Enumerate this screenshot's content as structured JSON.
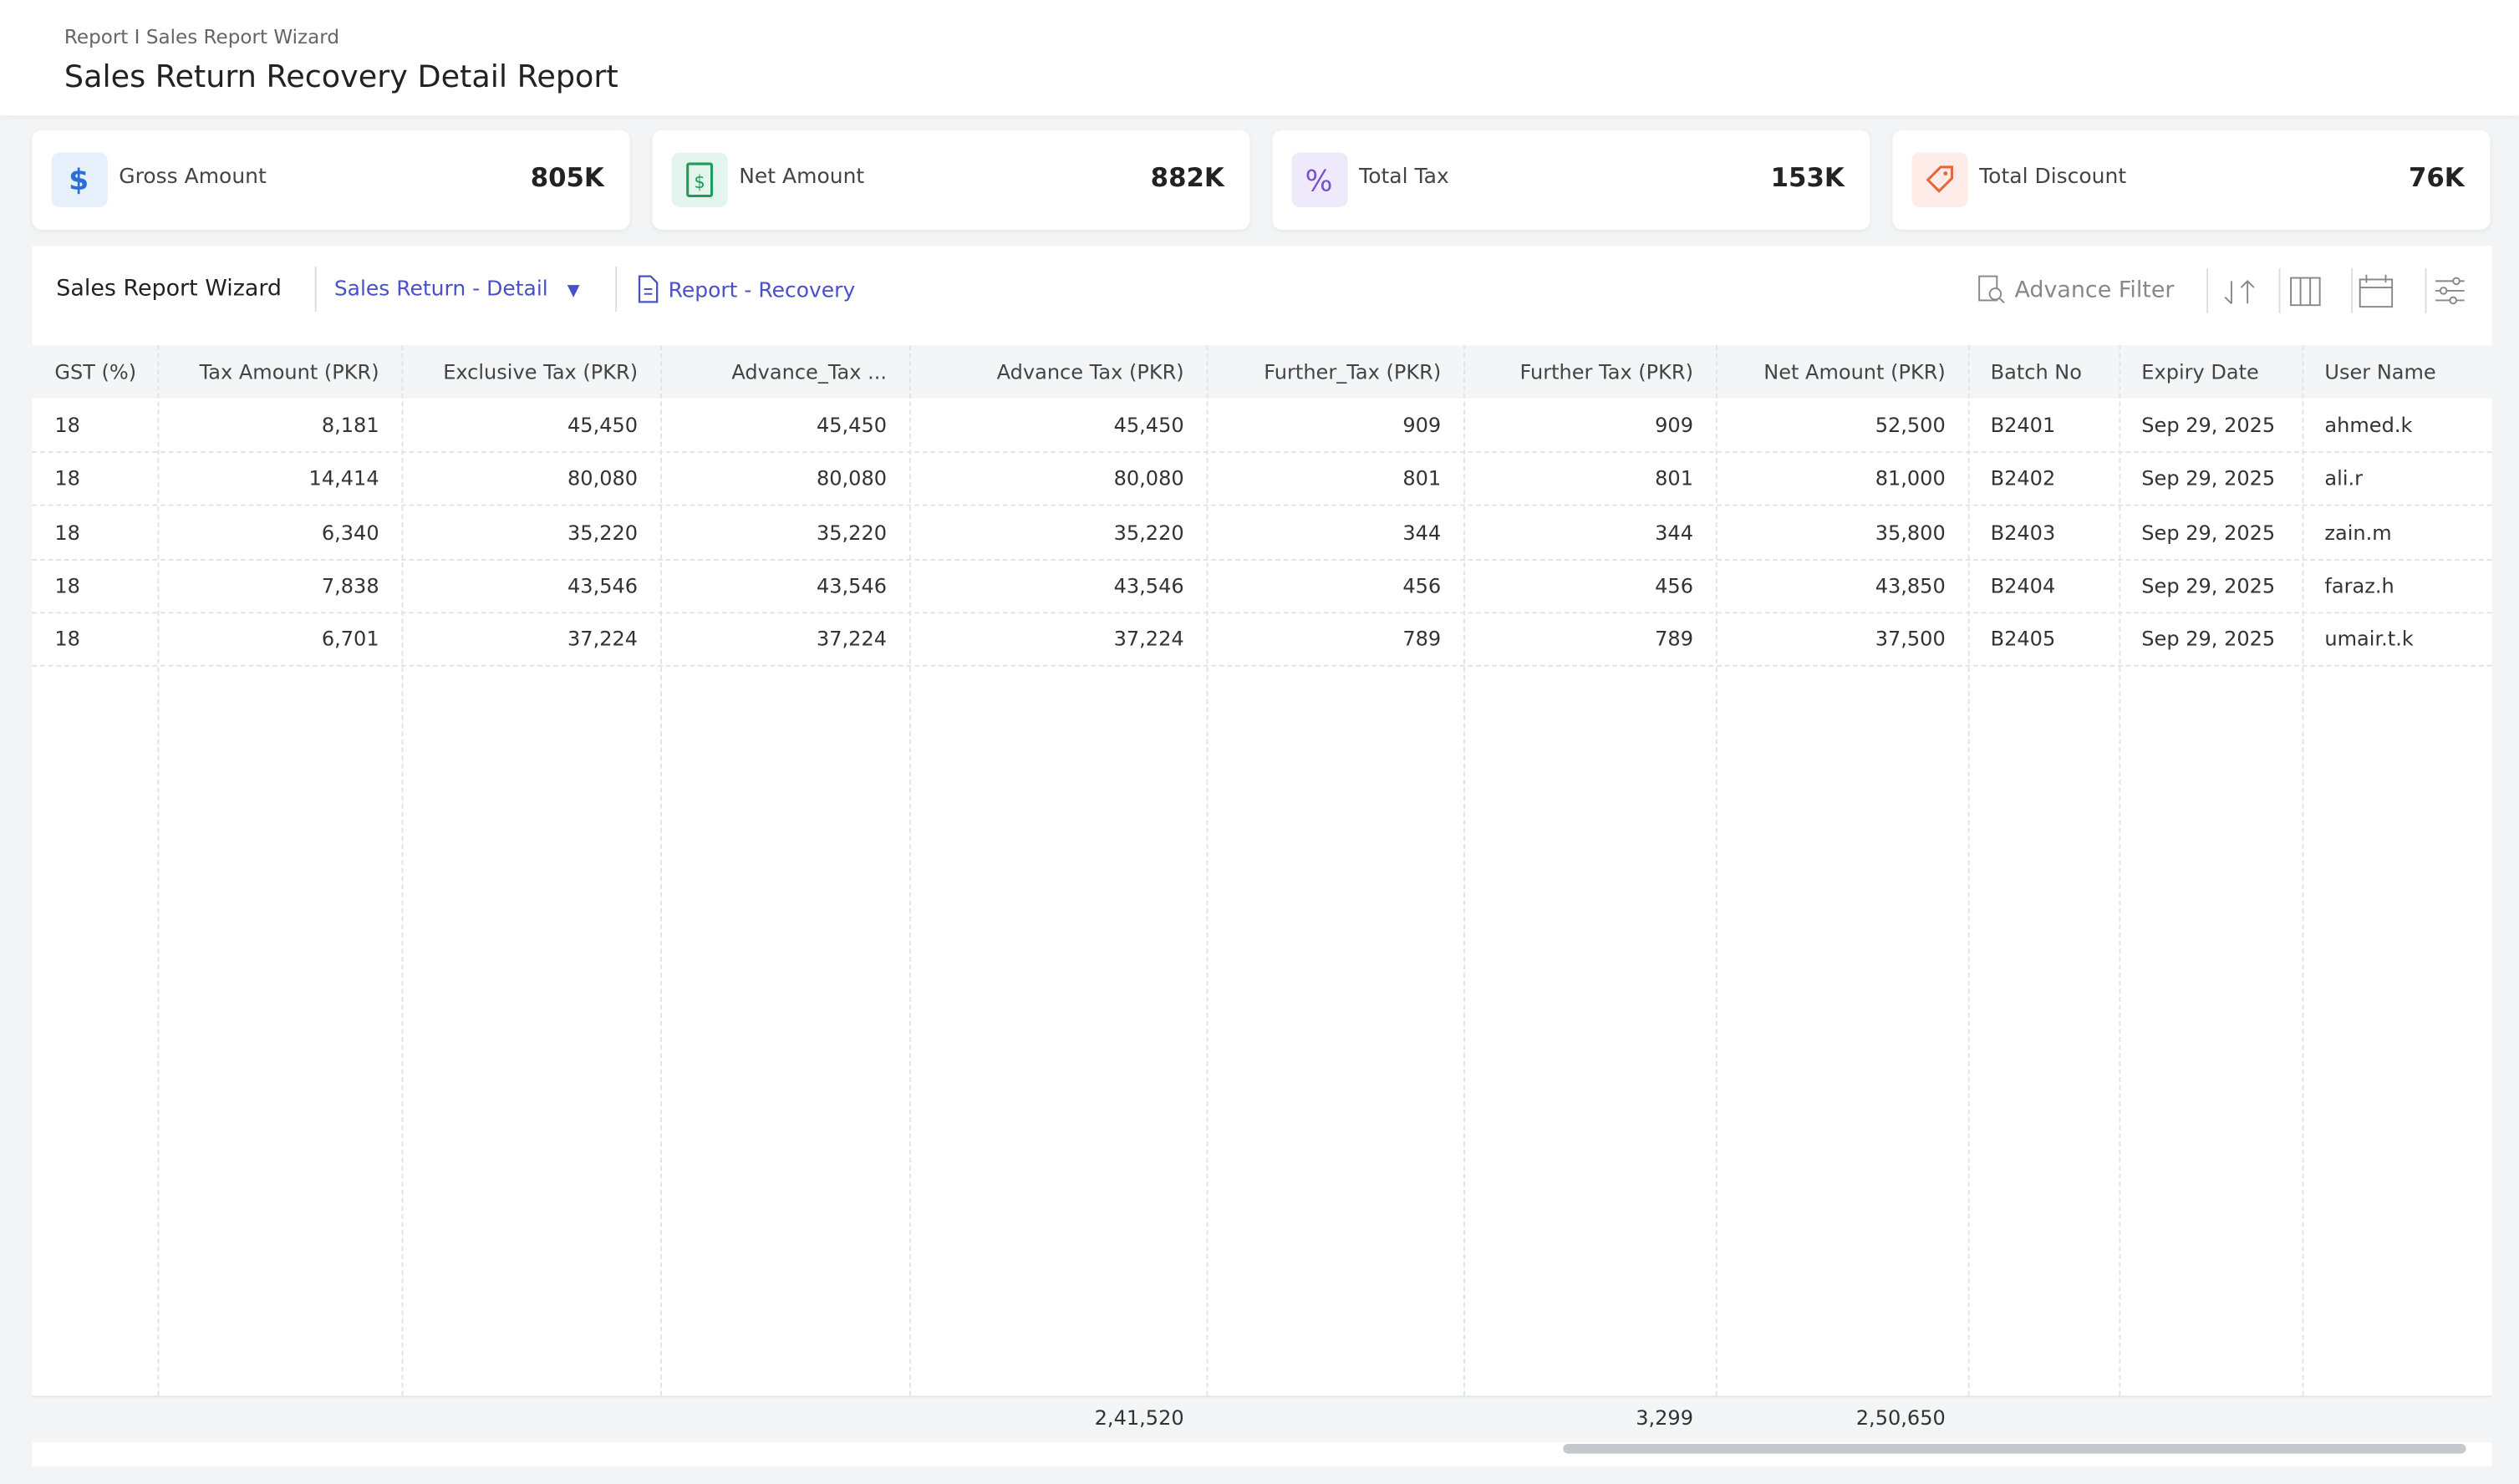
{
  "header": {
    "breadcrumb": "Report I Sales Report Wizard",
    "title": "Sales Return Recovery Detail Report"
  },
  "cards": [
    {
      "label": "Gross Amount",
      "value": "805K"
    },
    {
      "label": "Net Amount",
      "value": "882K"
    },
    {
      "label": "Total Tax",
      "value": "153K"
    },
    {
      "label": "Total Discount",
      "value": "76K"
    }
  ],
  "toolbar": {
    "title": "Sales Report Wizard",
    "view": "Sales Return - Detail",
    "report": "Report - Recovery",
    "filter": "Advance Filter"
  },
  "table": {
    "columns": [
      "GST (%)",
      "Tax Amount (PKR)",
      "Exclusive Tax (PKR)",
      "Advance_Tax ...",
      "Advance Tax (PKR)",
      "Further_Tax (PKR)",
      "Further Tax (PKR)",
      "Net Amount (PKR)",
      "Batch No",
      "Expiry Date",
      "User Name"
    ],
    "rows": [
      [
        "18",
        "8,181",
        "45,450",
        "45,450",
        "45,450",
        "909",
        "909",
        "52,500",
        "B2401",
        "Sep 29, 2025",
        "ahmed.k"
      ],
      [
        "18",
        "14,414",
        "80,080",
        "80,080",
        "80,080",
        "801",
        "801",
        "81,000",
        "B2402",
        "Sep 29, 2025",
        "ali.r"
      ],
      [
        "18",
        "6,340",
        "35,220",
        "35,220",
        "35,220",
        "344",
        "344",
        "35,800",
        "B2403",
        "Sep 29, 2025",
        "zain.m"
      ],
      [
        "18",
        "7,838",
        "43,546",
        "43,546",
        "43,546",
        "456",
        "456",
        "43,850",
        "B2404",
        "Sep 29, 2025",
        "faraz.h"
      ],
      [
        "18",
        "6,701",
        "37,224",
        "37,224",
        "37,224",
        "789",
        "789",
        "37,500",
        "B2405",
        "Sep 29, 2025",
        "umair.t.k"
      ]
    ],
    "totals": [
      null,
      null,
      null,
      null,
      "2,41,520",
      null,
      "3,299",
      "2,50,650",
      null,
      null,
      null
    ]
  }
}
